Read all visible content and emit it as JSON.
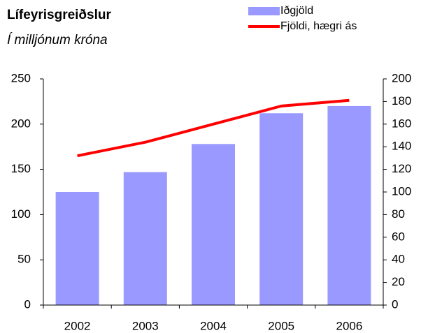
{
  "chart_data": {
    "type": "bar_line",
    "title": "Lífeyrisgreiðslur",
    "subtitle": "Í milljónum króna",
    "categories": [
      "2002",
      "2003",
      "2004",
      "2005",
      "2006"
    ],
    "series": [
      {
        "name": "Iðgjöld",
        "color": "#9999ff",
        "type": "bar",
        "values": [
          125,
          147,
          178,
          212,
          220
        ]
      },
      {
        "name": "Fjöldi, hægri ás",
        "color": "#ff0000",
        "type": "line",
        "axis": "y2",
        "values": [
          132,
          144,
          160,
          176,
          181
        ]
      }
    ],
    "ylim": [
      0,
      250
    ],
    "yticks": [
      0,
      50,
      100,
      150,
      200,
      250
    ],
    "y2lim": [
      0,
      200
    ],
    "y2ticks": [
      0,
      20,
      40,
      60,
      80,
      100,
      120,
      140,
      160,
      180,
      200
    ],
    "grid": false
  }
}
